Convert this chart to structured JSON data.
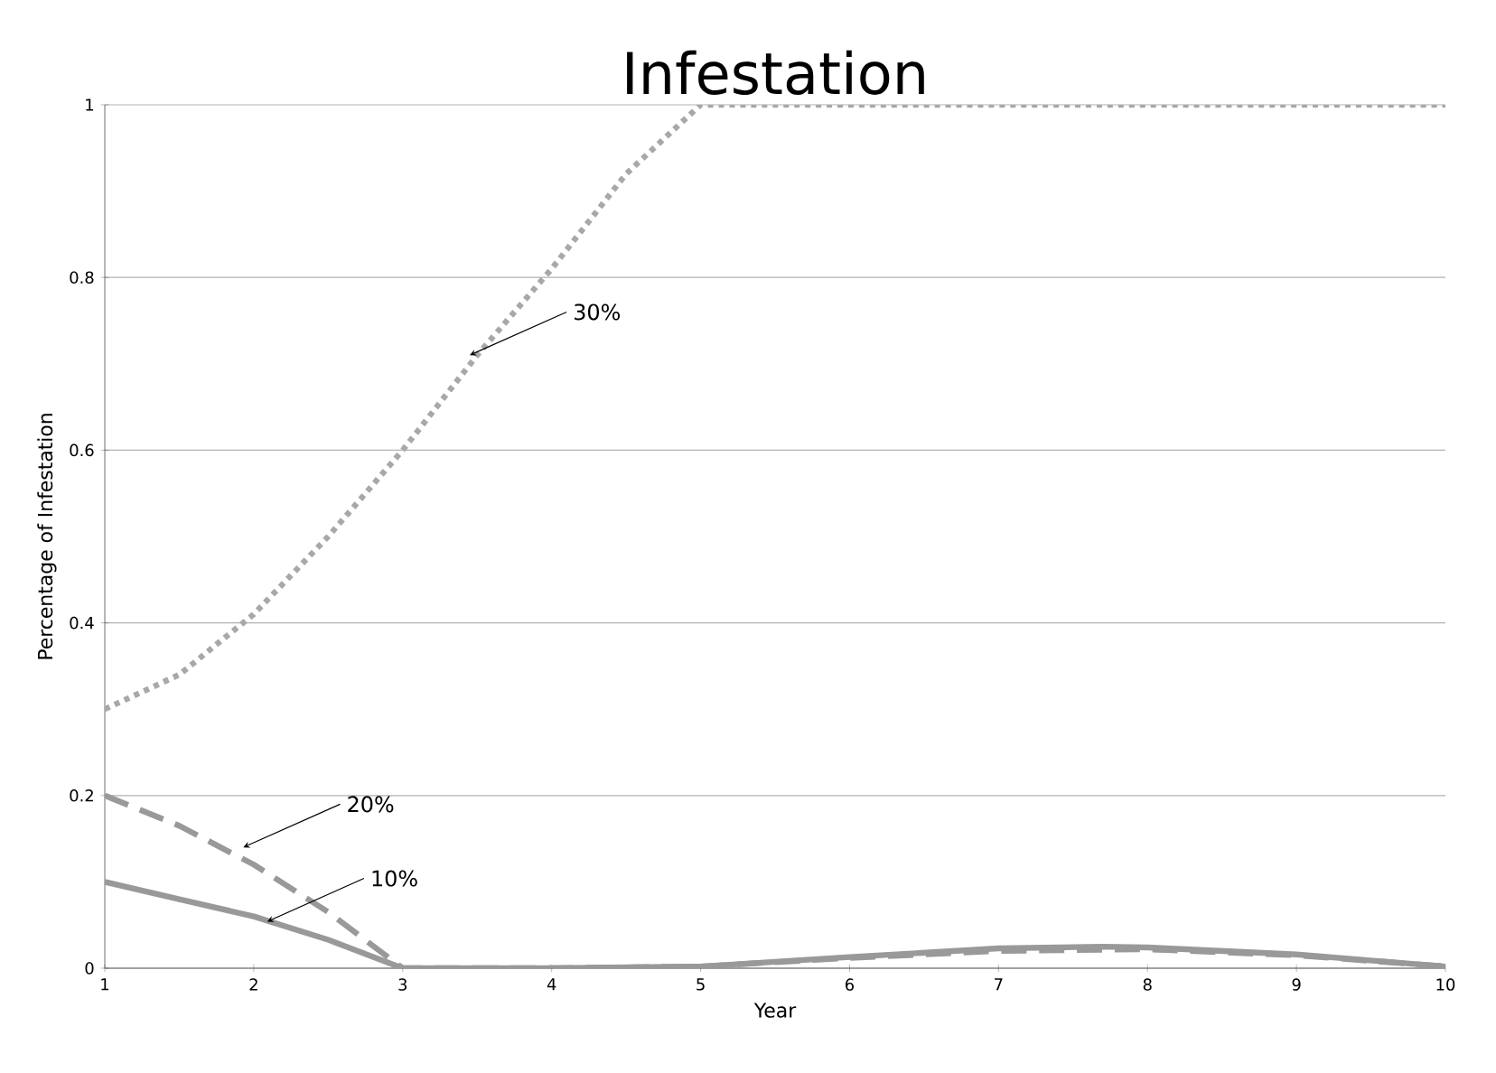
{
  "chart_data": {
    "type": "line",
    "title": "Infestation",
    "xlabel": "Year",
    "ylabel": "Percentage of Infestation",
    "xlim": [
      1,
      10
    ],
    "ylim": [
      0,
      1
    ],
    "xticks": [
      1,
      2,
      3,
      4,
      5,
      6,
      7,
      8,
      9,
      10
    ],
    "yticks": [
      0,
      0.2,
      0.4,
      0.6,
      0.8,
      1
    ],
    "grid": "y",
    "marker": "none",
    "series": [
      {
        "color": "#a8a8a8",
        "line_style": "dotted",
        "x": [
          1,
          1.5,
          2,
          2.5,
          3,
          3.5,
          4,
          4.5,
          5,
          6,
          7,
          8,
          9,
          10
        ],
        "values": [
          0.3,
          0.34,
          0.41,
          0.5,
          0.6,
          0.71,
          0.81,
          0.92,
          1.0,
          1,
          1,
          1,
          1,
          1
        ]
      },
      {
        "color": "#999999",
        "line_style": "dashed",
        "x": [
          1,
          1.5,
          2,
          2.5,
          3,
          3.5,
          4,
          5,
          6,
          7,
          8,
          9,
          10
        ],
        "values": [
          0.2,
          0.165,
          0.12,
          0.065,
          0.0,
          0,
          0,
          0.002,
          0.012,
          0.02,
          0.022,
          0.015,
          0.002
        ]
      },
      {
        "color": "#999999",
        "line_style": "solid",
        "x": [
          1,
          1.5,
          2,
          2.5,
          3,
          3.5,
          4,
          5,
          6,
          7,
          7.7,
          8,
          9,
          10
        ],
        "values": [
          0.1,
          0.08,
          0.06,
          0.033,
          0.0,
          0,
          0,
          0.002,
          0.013,
          0.023,
          0.025,
          0.024,
          0.016,
          0.002
        ]
      }
    ],
    "annotations": [
      {
        "text": "30%",
        "x": 3.45,
        "y": 0.71
      },
      {
        "text": "20%",
        "x": 1.93,
        "y": 0.14
      },
      {
        "text": "10%",
        "x": 2.09,
        "y": 0.054
      }
    ]
  }
}
